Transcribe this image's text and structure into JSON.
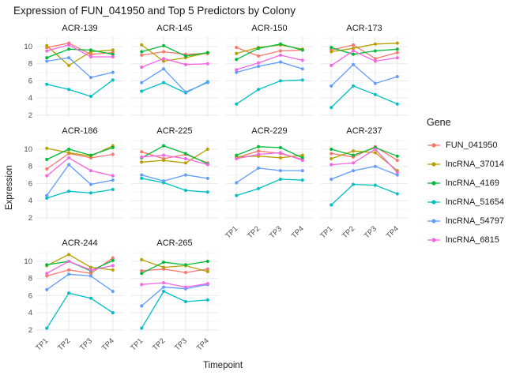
{
  "chart_data": {
    "type": "line",
    "title": "Expression of FUN_041950 and Top 5 Predictors by Colony",
    "xlabel": "Timepoint",
    "ylabel": "Expression",
    "legend_title": "Gene",
    "x": [
      "TP1",
      "TP2",
      "TP3",
      "TP4"
    ],
    "yticks": [
      2,
      4,
      6,
      8,
      10
    ],
    "ylim": [
      1.8,
      11.2
    ],
    "grid": true,
    "legend_position": "right",
    "genes": [
      {
        "name": "FUN_041950",
        "color": "#F8766D"
      },
      {
        "name": "lncRNA_37014",
        "color": "#B79F00"
      },
      {
        "name": "lncRNA_4169",
        "color": "#00BA38"
      },
      {
        "name": "lncRNA_51654",
        "color": "#00BFC4"
      },
      {
        "name": "lncRNA_54797",
        "color": "#619CFF"
      },
      {
        "name": "lncRNA_6815",
        "color": "#F564E3"
      }
    ],
    "facets": [
      {
        "name": "ACR-139",
        "values": [
          [
            9.9,
            10.4,
            9.1,
            9.3
          ],
          [
            10.1,
            7.8,
            9.4,
            9.6
          ],
          [
            8.7,
            9.7,
            9.6,
            9.1
          ],
          [
            5.6,
            5.0,
            4.2,
            6.1
          ],
          [
            8.3,
            8.7,
            6.4,
            7.0
          ],
          [
            9.5,
            10.2,
            8.8,
            8.8
          ]
        ]
      },
      {
        "name": "ACR-145",
        "values": [
          [
            9.0,
            9.4,
            9.1,
            9.2
          ],
          [
            10.2,
            8.3,
            8.7,
            9.3
          ],
          [
            9.4,
            10.1,
            8.9,
            9.3
          ],
          [
            4.8,
            5.8,
            4.6,
            5.9
          ],
          [
            5.8,
            7.4,
            4.7,
            5.8
          ],
          [
            7.6,
            8.6,
            7.9,
            8.0
          ]
        ]
      },
      {
        "name": "ACR-150",
        "values": [
          [
            9.9,
            8.9,
            9.5,
            9.6
          ],
          [
            9.2,
            9.9,
            10.2,
            9.7
          ],
          [
            8.5,
            9.8,
            10.3,
            9.6
          ],
          [
            3.3,
            5.0,
            6.0,
            6.1
          ],
          [
            7.0,
            7.7,
            8.2,
            7.4
          ],
          [
            7.3,
            8.1,
            9.0,
            8.4
          ]
        ]
      },
      {
        "name": "ACR-173",
        "values": [
          [
            9.6,
            10.2,
            8.6,
            9.3
          ],
          [
            9.4,
            9.8,
            10.3,
            10.4
          ],
          [
            9.9,
            9.1,
            9.5,
            9.7
          ],
          [
            2.9,
            5.4,
            4.4,
            3.3
          ],
          [
            5.4,
            7.9,
            5.7,
            6.5
          ],
          [
            7.8,
            9.5,
            8.3,
            8.7
          ]
        ]
      },
      {
        "name": "ACR-186",
        "values": [
          [
            7.7,
            9.5,
            9.0,
            9.4
          ],
          [
            10.1,
            9.6,
            9.2,
            10.4
          ],
          [
            8.8,
            10.0,
            9.3,
            10.2
          ],
          [
            4.3,
            5.1,
            4.9,
            5.3
          ],
          [
            4.6,
            8.2,
            5.9,
            6.4
          ],
          [
            6.9,
            9.0,
            7.5,
            6.9
          ]
        ]
      },
      {
        "name": "ACR-225",
        "values": [
          [
            9.7,
            8.9,
            9.4,
            8.4
          ],
          [
            8.5,
            8.7,
            8.4,
            10.0
          ],
          [
            9.0,
            10.4,
            9.5,
            8.3
          ],
          [
            6.6,
            6.1,
            5.2,
            5.0
          ],
          [
            7.0,
            6.3,
            7.0,
            6.6
          ],
          [
            9.1,
            9.3,
            8.9,
            8.2
          ]
        ]
      },
      {
        "name": "ACR-229",
        "values": [
          [
            9.0,
            9.8,
            9.5,
            8.8
          ],
          [
            9.1,
            9.2,
            9.0,
            9.3
          ],
          [
            9.3,
            10.3,
            10.2,
            9.0
          ],
          [
            4.6,
            5.4,
            6.5,
            6.4
          ],
          [
            6.1,
            7.8,
            7.5,
            7.5
          ],
          [
            8.9,
            9.4,
            9.6,
            8.7
          ]
        ]
      },
      {
        "name": "ACR-237",
        "values": [
          [
            9.5,
            9.1,
            10.3,
            8.7
          ],
          [
            8.9,
            9.8,
            9.6,
            7.5
          ],
          [
            10.0,
            9.3,
            10.2,
            9.2
          ],
          [
            3.5,
            5.9,
            5.8,
            4.8
          ],
          [
            6.5,
            7.5,
            8.0,
            7.0
          ],
          [
            8.2,
            8.4,
            10.0,
            7.3
          ]
        ]
      },
      {
        "name": "ACR-244",
        "values": [
          [
            8.3,
            9.0,
            8.6,
            10.4
          ],
          [
            9.5,
            10.8,
            9.3,
            9.0
          ],
          [
            9.6,
            10.0,
            8.9,
            10.1
          ],
          [
            2.2,
            6.3,
            5.7,
            4.0
          ],
          [
            6.7,
            8.5,
            8.3,
            6.5
          ],
          [
            8.6,
            10.0,
            9.0,
            9.5
          ]
        ]
      },
      {
        "name": "ACR-265",
        "values": [
          [
            8.9,
            9.1,
            8.7,
            9.1
          ],
          [
            10.2,
            9.3,
            9.5,
            8.8
          ],
          [
            8.6,
            9.9,
            9.6,
            10.0
          ],
          [
            2.2,
            6.5,
            5.3,
            5.5
          ],
          [
            4.8,
            7.0,
            6.8,
            7.3
          ],
          [
            7.3,
            7.5,
            7.0,
            7.4
          ]
        ]
      }
    ]
  }
}
